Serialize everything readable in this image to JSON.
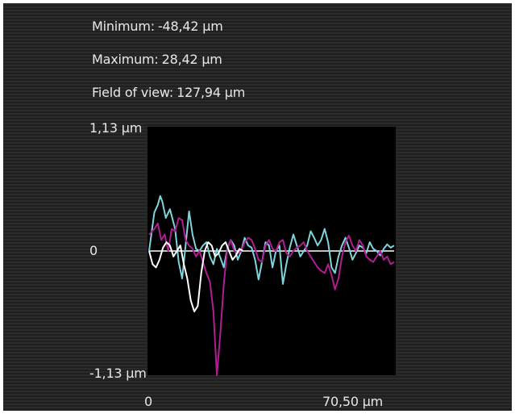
{
  "stats": {
    "minimum_label": "Minimum:",
    "minimum_value": "-48,42 µm",
    "maximum_label": "Maximum:",
    "maximum_value": "28,42 µm",
    "fov_label": "Field of view:",
    "fov_value": "127,94 µm"
  },
  "chart_data": {
    "type": "line",
    "xlim": [
      0,
      70.5
    ],
    "ylim": [
      -1.13,
      1.13
    ],
    "x_ticks": [
      "0",
      "70,50 µm"
    ],
    "y_ticks": [
      "1,13 µm",
      "0",
      "-1,13 µm"
    ],
    "baseline_color": "#ffffff",
    "series": [
      {
        "color": "#7fd4dc",
        "x": [
          0,
          1.5,
          2.5,
          3.2,
          3.8,
          4.8,
          6,
          7.5,
          8.5,
          9.5,
          10.5,
          11.5,
          12.5,
          13.5,
          14.5,
          15.5,
          16.5,
          17.5,
          18.5,
          19.5,
          20.5,
          21.5,
          22.5,
          23.5,
          24.5,
          25.5,
          26.5,
          27.5,
          28.5,
          29.5,
          30.5,
          31.5,
          32.5,
          33.5,
          34.5,
          35.5,
          36.5,
          37.5,
          38.5,
          39.5,
          40.5,
          41.5,
          42.5,
          43.5,
          44.5,
          45.5,
          46.5,
          47.5,
          48.5,
          49.5,
          50.5,
          51.5,
          52.5,
          53.5,
          54.5,
          55.5,
          56.5,
          57.5,
          58.5,
          59.5,
          60.5,
          61.5,
          62.5,
          63.5,
          64.5,
          65.5,
          66.5,
          67.5,
          68.5,
          69.5,
          70.5
        ],
        "y": [
          0.0,
          0.35,
          0.42,
          0.5,
          0.45,
          0.3,
          0.38,
          0.2,
          -0.1,
          -0.25,
          0.05,
          0.36,
          0.15,
          0.02,
          0.0,
          0.05,
          0.08,
          -0.05,
          -0.12,
          0.02,
          -0.06,
          -0.15,
          0.02,
          0.1,
          0.05,
          -0.08,
          0.0,
          0.12,
          0.05,
          0.03,
          -0.08,
          -0.26,
          -0.1,
          0.08,
          0.05,
          -0.15,
          0.0,
          0.05,
          -0.3,
          -0.12,
          0.03,
          0.15,
          0.05,
          -0.05,
          0.0,
          0.05,
          0.18,
          0.12,
          0.05,
          0.1,
          0.2,
          0.08,
          -0.15,
          -0.2,
          -0.05,
          0.05,
          0.12,
          0.03,
          -0.08,
          -0.02,
          0.05,
          0.03,
          -0.02,
          0.08,
          0.02,
          0.0,
          -0.04,
          0.02,
          0.06,
          0.03,
          0.05
        ]
      },
      {
        "color": "#b01e92",
        "x": [
          0,
          1.5,
          2.5,
          3.5,
          4.5,
          5.5,
          6.5,
          7.5,
          8.5,
          9.5,
          10.5,
          11.5,
          12.5,
          13.5,
          14.5,
          15.5,
          16.5,
          17.5,
          18.5,
          19.5,
          20.5,
          21.5,
          22.5,
          23.5,
          24.5,
          25.5,
          26.5,
          27.5,
          28.5,
          29.5,
          30.5,
          31.5,
          32.5,
          33.5,
          34.5,
          35.5,
          36.5,
          37.5,
          38.5,
          39.5,
          40.5,
          41.5,
          42.5,
          43.5,
          44.5,
          45.5,
          46.5,
          47.5,
          48.5,
          49.5,
          50.5,
          51.5,
          52.5,
          53.5,
          54.5,
          55.5,
          56.5,
          57.5,
          58.5,
          59.5,
          60.5,
          61.5,
          62.5,
          63.5,
          64.5,
          65.5,
          66.5,
          67.5,
          68.5,
          69.5,
          70.5
        ],
        "y": [
          0.15,
          0.2,
          0.25,
          0.1,
          0.15,
          0.0,
          0.2,
          0.18,
          0.3,
          0.28,
          0.1,
          0.05,
          0.02,
          -0.05,
          0.0,
          -0.1,
          -0.2,
          -0.28,
          -0.55,
          -1.13,
          -0.75,
          -0.3,
          0.02,
          0.1,
          0.0,
          -0.02,
          0.0,
          0.08,
          0.12,
          0.1,
          0.02,
          -0.08,
          -0.1,
          0.05,
          0.1,
          0.02,
          0.0,
          0.08,
          0.1,
          -0.02,
          -0.05,
          0.0,
          0.03,
          0.05,
          0.08,
          0.0,
          -0.05,
          -0.1,
          -0.15,
          -0.18,
          -0.2,
          -0.12,
          -0.22,
          -0.35,
          -0.25,
          -0.05,
          0.08,
          0.14,
          0.05,
          0.0,
          0.1,
          0.05,
          -0.05,
          -0.08,
          -0.1,
          -0.05,
          0.0,
          -0.08,
          -0.05,
          -0.12,
          -0.1
        ]
      },
      {
        "color": "#ffffff",
        "x": [
          0,
          1,
          2,
          3,
          4,
          5,
          6,
          7,
          8,
          9,
          10,
          11,
          12,
          13,
          14,
          15,
          16,
          17,
          18,
          19,
          20,
          21,
          22,
          23,
          24,
          25,
          26,
          27
        ],
        "y": [
          0.0,
          -0.12,
          -0.15,
          -0.08,
          0.03,
          0.08,
          0.05,
          -0.05,
          0.0,
          0.05,
          -0.12,
          -0.25,
          -0.45,
          -0.55,
          -0.5,
          -0.2,
          0.0,
          0.08,
          0.05,
          -0.05,
          -0.02,
          0.05,
          0.08,
          0.0,
          -0.08,
          -0.04,
          0.02,
          0.0
        ]
      }
    ]
  }
}
